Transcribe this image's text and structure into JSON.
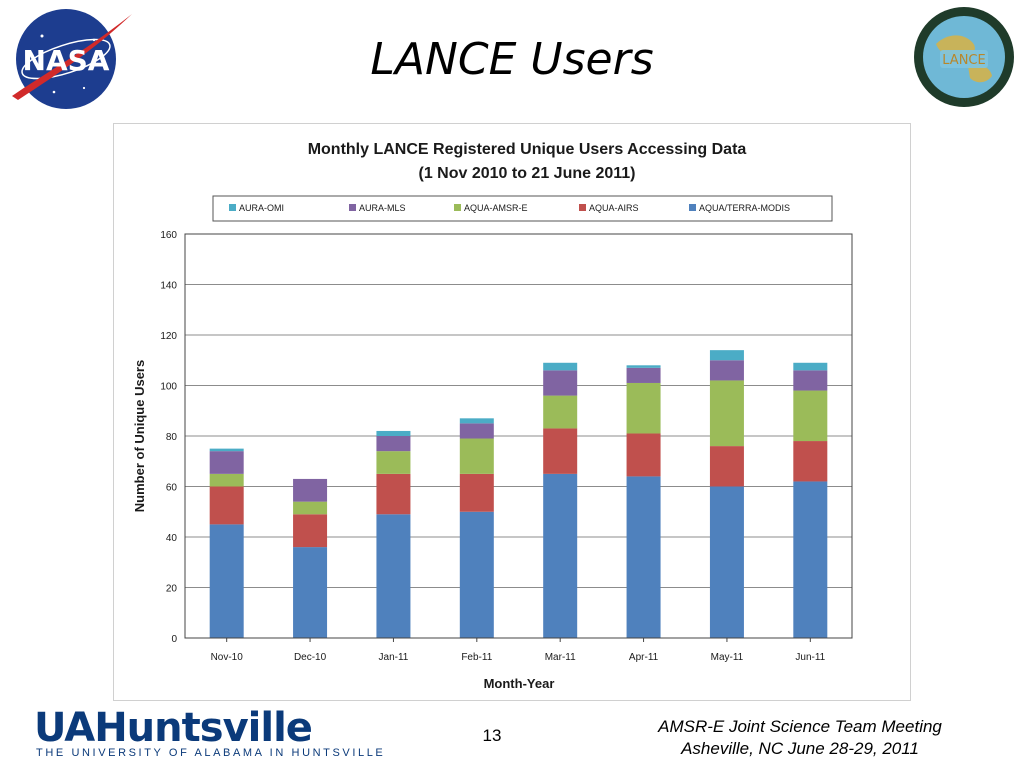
{
  "slide": {
    "title": "LANCE Users",
    "page_number": "13",
    "footer_line1": "AMSR-E Joint Science Team Meeting",
    "footer_line2": "Asheville, NC June 28-29, 2011"
  },
  "logos": {
    "nasa": {
      "text": "NASA",
      "colors": {
        "disc": "#1d3d8f",
        "swoosh": "#d12a2a"
      }
    },
    "lance": {
      "text": "LANCE"
    },
    "ua": {
      "main": "UAHuntsville",
      "sub": "THE UNIVERSITY OF ALABAMA IN HUNTSVILLE",
      "color": "#0b3a7a"
    }
  },
  "chart_data": {
    "type": "bar",
    "stacked": true,
    "title": "Monthly LANCE Registered  Unique Users  Accessing Data",
    "subtitle": "(1 Nov 2010  to 21 June 2011)",
    "xlabel": "Month-Year",
    "ylabel": "Number of Unique Users",
    "ylim": [
      0,
      160
    ],
    "yticks": [
      0,
      20,
      40,
      60,
      80,
      100,
      120,
      140,
      160
    ],
    "grid": true,
    "legend_position": "top",
    "legend_order": [
      "AURA-OMI",
      "AURA-MLS",
      "AQUA-AMSR-E",
      "AQUA-AIRS",
      "AQUA/TERRA-MODIS"
    ],
    "categories": [
      "Nov-10",
      "Dec-10",
      "Jan-11",
      "Feb-11",
      "Mar-11",
      "Apr-11",
      "May-11",
      "Jun-11"
    ],
    "series": [
      {
        "name": "AQUA/TERRA-MODIS",
        "color": "#4f81bd",
        "values": [
          45,
          36,
          49,
          50,
          65,
          64,
          60,
          62
        ]
      },
      {
        "name": "AQUA-AIRS",
        "color": "#c0504d",
        "values": [
          15,
          13,
          16,
          15,
          18,
          17,
          16,
          16
        ]
      },
      {
        "name": "AQUA-AMSR-E",
        "color": "#9bbb59",
        "values": [
          5,
          5,
          9,
          14,
          13,
          20,
          26,
          20
        ]
      },
      {
        "name": "AURA-MLS",
        "color": "#8064a2",
        "values": [
          9,
          9,
          6,
          6,
          10,
          6,
          8,
          8
        ]
      },
      {
        "name": "AURA-OMI",
        "color": "#4bacc6",
        "values": [
          1,
          0,
          2,
          2,
          3,
          1,
          4,
          3
        ]
      }
    ]
  }
}
